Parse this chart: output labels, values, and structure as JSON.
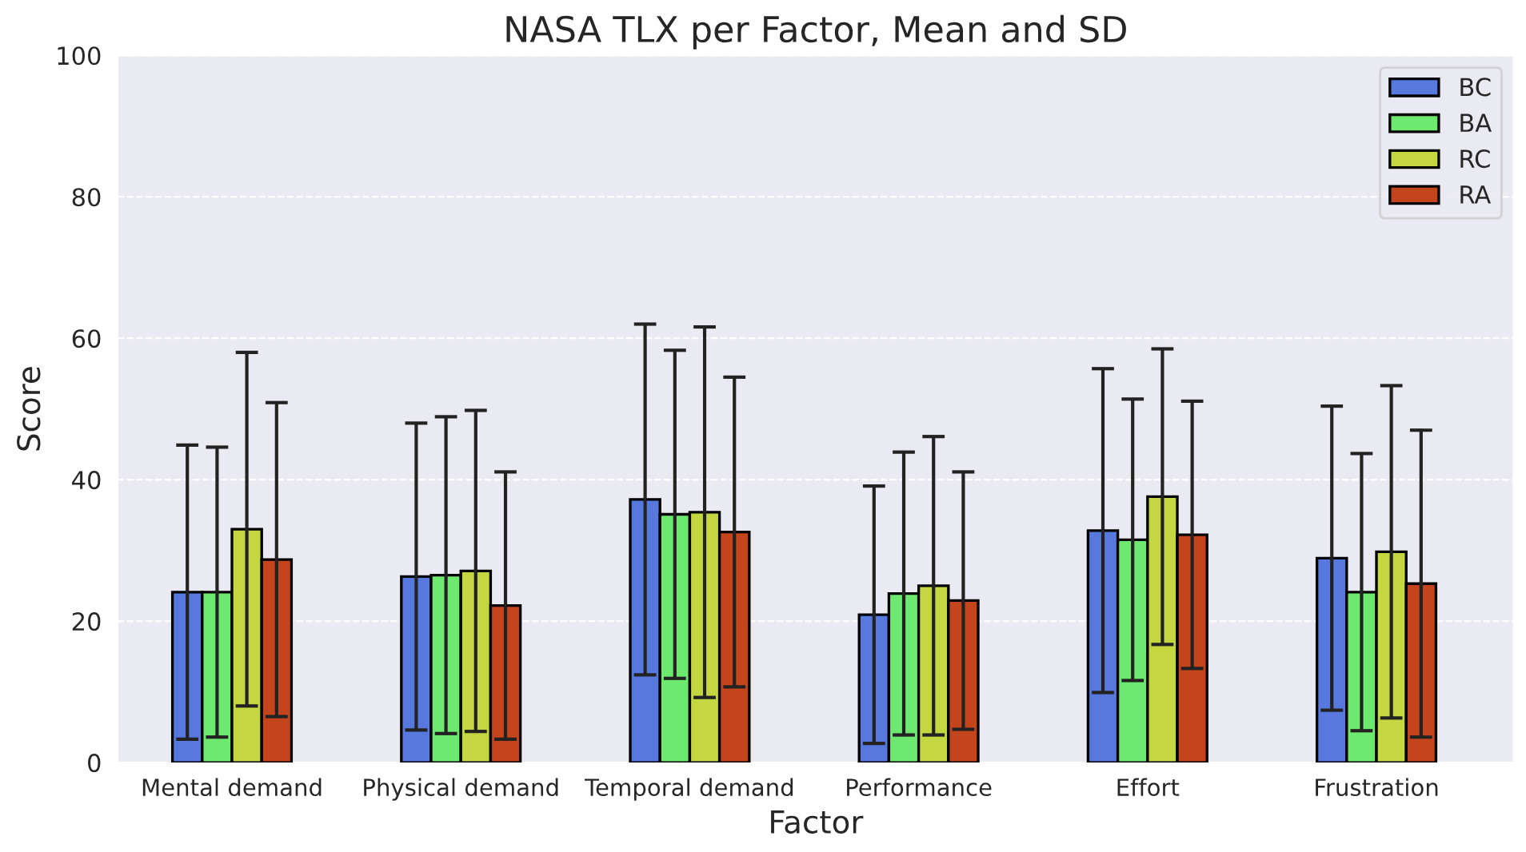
{
  "chart_data": {
    "type": "bar",
    "title": "NASA TLX per Factor, Mean and SD",
    "xlabel": "Factor",
    "ylabel": "Score",
    "categories": [
      "Mental demand",
      "Physical demand",
      "Temporal demand",
      "Performance",
      "Effort",
      "Frustration"
    ],
    "series": [
      {
        "name": "BC",
        "color": "#5778dc",
        "values": [
          24.1,
          26.3,
          37.2,
          20.9,
          32.8,
          28.9
        ],
        "errors": [
          20.8,
          21.7,
          24.8,
          18.2,
          22.9,
          21.5
        ]
      },
      {
        "name": "BA",
        "color": "#6ce96e",
        "values": [
          24.1,
          26.5,
          35.1,
          23.9,
          31.5,
          24.1
        ],
        "errors": [
          20.5,
          22.4,
          23.2,
          20.0,
          19.9,
          19.6
        ]
      },
      {
        "name": "RC",
        "color": "#c4d640",
        "values": [
          33.0,
          27.1,
          35.4,
          25.0,
          37.6,
          29.8
        ],
        "errors": [
          25.0,
          22.7,
          26.2,
          21.1,
          20.9,
          23.5
        ]
      },
      {
        "name": "RA",
        "color": "#c4451c",
        "values": [
          28.7,
          22.2,
          32.6,
          22.9,
          32.2,
          25.3
        ],
        "errors": [
          22.2,
          18.9,
          21.9,
          18.2,
          18.9,
          21.7
        ]
      }
    ],
    "ylim": [
      0,
      100
    ],
    "yticks": [
      0,
      20,
      40,
      60,
      80,
      100
    ],
    "grid": "y",
    "legend": "top right"
  }
}
